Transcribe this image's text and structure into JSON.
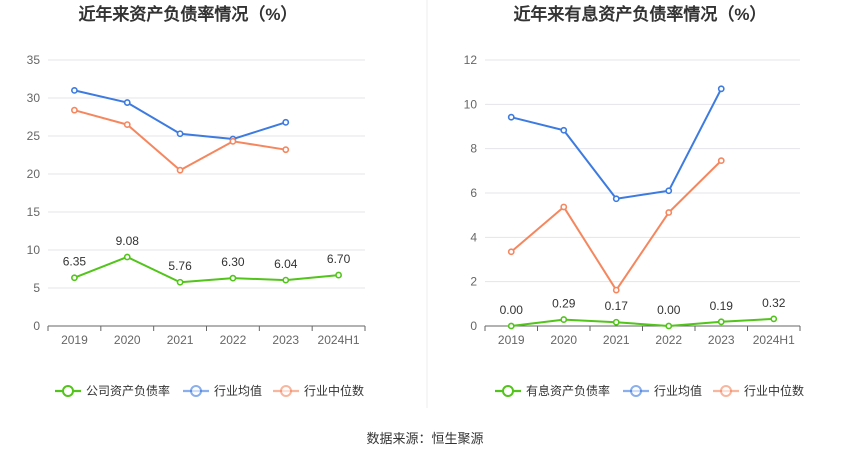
{
  "source": "数据来源：恒生聚源",
  "chart_data": [
    {
      "type": "line",
      "title": "近年来资产负债率情况（%）",
      "categories": [
        "2019",
        "2020",
        "2021",
        "2022",
        "2023",
        "2024H1"
      ],
      "ylim": [
        0,
        35
      ],
      "yticks": [
        0,
        5,
        10,
        15,
        20,
        25,
        30,
        35
      ],
      "grid": true,
      "legend_position": "bottom",
      "series": [
        {
          "name": "公司资产负债率",
          "color": "#52c41a",
          "labeled": true,
          "labels": [
            "6.35",
            "9.08",
            "5.76",
            "6.30",
            "6.04",
            "6.70"
          ],
          "values": [
            6.35,
            9.08,
            5.76,
            6.3,
            6.04,
            6.7
          ]
        },
        {
          "name": "行业均值",
          "color": "#3d7be0",
          "labeled": false,
          "values": [
            31.0,
            29.4,
            25.3,
            24.6,
            26.8,
            null
          ]
        },
        {
          "name": "行业中位数",
          "color": "#f5875f",
          "labeled": false,
          "values": [
            28.4,
            26.5,
            20.5,
            24.3,
            23.2,
            null
          ]
        }
      ]
    },
    {
      "type": "line",
      "title": "近年来有息资产负债率情况（%）",
      "categories": [
        "2019",
        "2020",
        "2021",
        "2022",
        "2023",
        "2024H1"
      ],
      "ylim": [
        0,
        12
      ],
      "yticks": [
        0,
        2,
        4,
        6,
        8,
        10,
        12
      ],
      "grid": true,
      "legend_position": "bottom",
      "series": [
        {
          "name": "有息资产负债率",
          "color": "#52c41a",
          "labeled": true,
          "labels": [
            "0.00",
            "0.29",
            "0.17",
            "0.00",
            "0.19",
            "0.32"
          ],
          "values": [
            0.0,
            0.29,
            0.17,
            0.0,
            0.19,
            0.32
          ]
        },
        {
          "name": "行业均值",
          "color": "#3d7be0",
          "labeled": false,
          "values": [
            9.42,
            8.83,
            5.74,
            6.1,
            10.7,
            null
          ]
        },
        {
          "name": "行业中位数",
          "color": "#f5875f",
          "labeled": false,
          "values": [
            3.35,
            5.37,
            1.62,
            5.12,
            7.46,
            null
          ]
        }
      ]
    }
  ]
}
